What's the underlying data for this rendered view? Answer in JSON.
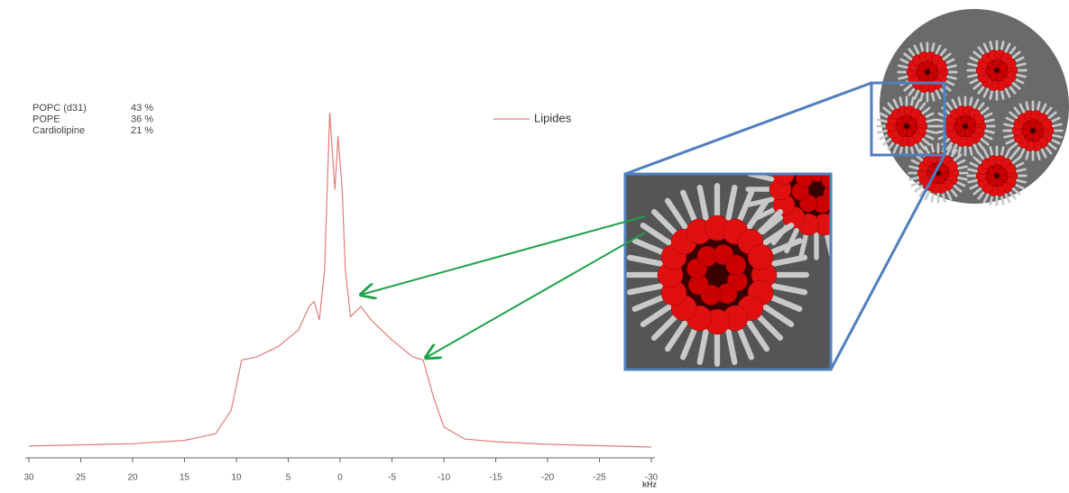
{
  "chart_data": {
    "type": "line",
    "composition": [
      [
        "POPC (d31)",
        "43 %"
      ],
      [
        "POPE",
        "36 %"
      ],
      [
        "Cardiolipine",
        "21 %"
      ]
    ],
    "xlabel": "kHz",
    "x": [
      30,
      20,
      15,
      12,
      10.5,
      9.5,
      8,
      6,
      4,
      3,
      2.5,
      2,
      1.5,
      1,
      0.5,
      0.2,
      -0.2,
      -0.5,
      -1,
      -2,
      -3,
      -5,
      -7,
      -8,
      -9,
      -10,
      -12,
      -15,
      -20,
      -30
    ],
    "series": [
      {
        "name": "Lipides",
        "color": "#e07c7c",
        "values": [
          0.3,
          1,
          2,
          4,
          11,
          26,
          27,
          30,
          35,
          42,
          43.5,
          38,
          53,
          100,
          77,
          93,
          77,
          53,
          39,
          42,
          38,
          32,
          27,
          26,
          15,
          6,
          2.4,
          1.6,
          0.8,
          0
        ]
      }
    ],
    "xlim": [
      30,
      -30
    ],
    "xticks": [
      30,
      25,
      20,
      15,
      10,
      5,
      0,
      -5,
      -10,
      -15,
      -20,
      -25,
      -30
    ],
    "legend": "upper-right"
  }
}
